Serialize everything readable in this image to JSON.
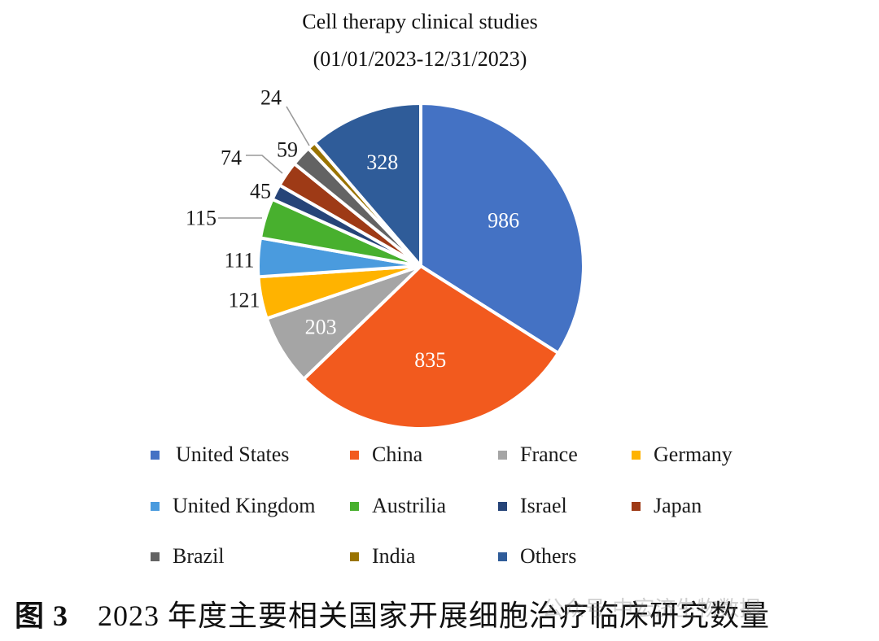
{
  "chart_data": {
    "type": "pie",
    "title": "Cell therapy clinical studies",
    "subtitle": "(01/01/2023-12/31/2023)",
    "slices": [
      {
        "label": "United States",
        "value": 986,
        "color": "#4472C4"
      },
      {
        "label": "China",
        "value": 835,
        "color": "#F25A1E"
      },
      {
        "label": "France",
        "value": 203,
        "color": "#A5A5A5"
      },
      {
        "label": "Germany",
        "value": 121,
        "color": "#FFB300"
      },
      {
        "label": "United Kingdom",
        "value": 111,
        "color": "#4A9BDE"
      },
      {
        "label": "Austrilia",
        "value": 115,
        "color": "#48B02E"
      },
      {
        "label": "Israel",
        "value": 45,
        "color": "#264478"
      },
      {
        "label": "Japan",
        "value": 74,
        "color": "#9E3A16"
      },
      {
        "label": "Brazil",
        "value": 59,
        "color": "#636363"
      },
      {
        "label": "India",
        "value": 24,
        "color": "#997300"
      },
      {
        "label": "Others",
        "value": 328,
        "color": "#2F5C99"
      }
    ],
    "legend_placement": "bottom"
  },
  "caption": {
    "figure_number": "图 3",
    "text": "2023 年度主要相关国家开展细胞治疗临床研究数量"
  },
  "watermark": "公众号 中宏济生物数据"
}
